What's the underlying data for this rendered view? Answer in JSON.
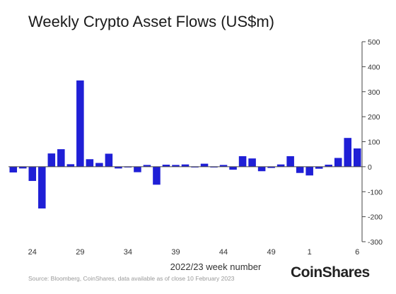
{
  "chart_data": {
    "type": "bar",
    "title": "Weekly Crypto Asset Flows (US$m)",
    "xlabel": "2022/23 week number",
    "ylabel": "",
    "ylim": [
      -300,
      500
    ],
    "yticks": [
      500,
      400,
      300,
      200,
      100,
      0,
      -100,
      -200,
      -300
    ],
    "y_axis_side": "right",
    "grid": false,
    "bar_color": "#1f1fd6",
    "x_tick_labels": [
      "24",
      "29",
      "34",
      "39",
      "44",
      "49",
      "1",
      "6"
    ],
    "categories": [
      "22",
      "23",
      "24",
      "25",
      "26",
      "27",
      "28",
      "29",
      "30",
      "31",
      "32",
      "33",
      "34",
      "35",
      "36",
      "37",
      "38",
      "39",
      "40",
      "41",
      "42",
      "43",
      "44",
      "45",
      "46",
      "47",
      "48",
      "49",
      "50",
      "51",
      "52",
      "1",
      "2",
      "3",
      "4",
      "5",
      "6"
    ],
    "values": [
      -23,
      -7,
      -57,
      -167,
      53,
      70,
      10,
      345,
      30,
      15,
      52,
      -7,
      -3,
      -22,
      7,
      -72,
      8,
      7,
      9,
      -3,
      12,
      -3,
      7,
      -12,
      42,
      33,
      -18,
      -5,
      9,
      42,
      -25,
      -35,
      -8,
      8,
      35,
      115,
      73
    ]
  },
  "source": "Source: Bloomberg, CoinShares, data available as of close 10 February 2023",
  "logo": "CoinShares"
}
